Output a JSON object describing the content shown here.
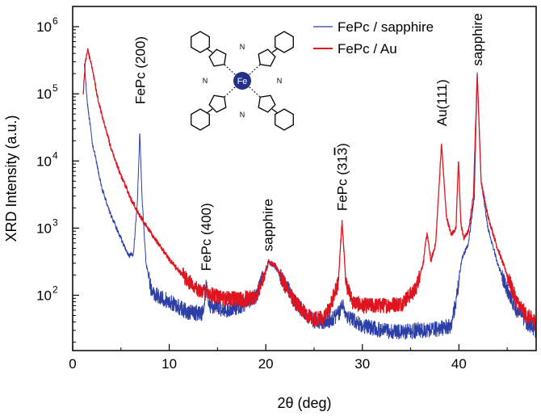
{
  "chart_data": {
    "type": "line",
    "title": "",
    "xlabel": "2θ (deg)",
    "ylabel": "XRD Intensity (a.u.)",
    "xlim": [
      0,
      48
    ],
    "ylim": [
      15,
      2000000
    ],
    "yscale": "log",
    "x_ticks": [
      0,
      10,
      20,
      30,
      40
    ],
    "x_tick_labels": [
      "0",
      "10",
      "20",
      "30",
      "40"
    ],
    "y_ticks": [
      100,
      1000,
      10000,
      100000,
      1000000
    ],
    "y_tick_labels": [
      "10",
      "10",
      "10",
      "10",
      "10"
    ],
    "y_tick_exponents": [
      "2",
      "3",
      "4",
      "5",
      "6"
    ],
    "legend_position": "top-right",
    "series": [
      {
        "name": "FePc / sapphire",
        "color": "#2b3fa6",
        "points": [
          [
            1.2,
            300000
          ],
          [
            1.5,
            80000
          ],
          [
            2,
            20000
          ],
          [
            3,
            4000
          ],
          [
            4,
            1500
          ],
          [
            5,
            700
          ],
          [
            5.8,
            380
          ],
          [
            6.3,
            420
          ],
          [
            6.7,
            2500
          ],
          [
            6.95,
            27000
          ],
          [
            7.2,
            2500
          ],
          [
            7.6,
            300
          ],
          [
            8.2,
            110
          ],
          [
            10,
            80
          ],
          [
            12,
            55
          ],
          [
            13.5,
            55
          ],
          [
            13.8,
            140
          ],
          [
            14.2,
            70
          ],
          [
            16,
            60
          ],
          [
            17.5,
            70
          ],
          [
            19,
            100
          ],
          [
            19.8,
            200
          ],
          [
            20.3,
            320
          ],
          [
            21,
            260
          ],
          [
            22,
            150
          ],
          [
            23,
            80
          ],
          [
            24,
            55
          ],
          [
            25,
            42
          ],
          [
            26,
            40
          ],
          [
            27,
            45
          ],
          [
            27.6,
            55
          ],
          [
            27.9,
            75
          ],
          [
            28.4,
            50
          ],
          [
            30,
            35
          ],
          [
            32,
            30
          ],
          [
            34,
            28
          ],
          [
            36,
            30
          ],
          [
            38,
            32
          ],
          [
            39.2,
            35
          ],
          [
            39.8,
            100
          ],
          [
            40.3,
            350
          ],
          [
            41,
            600
          ],
          [
            41.6,
            3000
          ],
          [
            41.9,
            200000
          ],
          [
            42.3,
            5000
          ],
          [
            43,
            1000
          ],
          [
            44,
            300
          ],
          [
            45,
            120
          ],
          [
            46,
            60
          ],
          [
            47,
            40
          ],
          [
            48,
            30
          ]
        ]
      },
      {
        "name": "FePc / Au",
        "color": "#e0141e",
        "points": [
          [
            1.1,
            100000
          ],
          [
            1.3,
            300000
          ],
          [
            1.55,
            450000
          ],
          [
            1.9,
            300000
          ],
          [
            2.5,
            100000
          ],
          [
            3,
            50000
          ],
          [
            4,
            15000
          ],
          [
            5,
            6000
          ],
          [
            6,
            2800
          ],
          [
            7,
            1500
          ],
          [
            8,
            900
          ],
          [
            9,
            550
          ],
          [
            10,
            350
          ],
          [
            11,
            230
          ],
          [
            12,
            160
          ],
          [
            13,
            120
          ],
          [
            13.7,
            110
          ],
          [
            14.5,
            100
          ],
          [
            16,
            90
          ],
          [
            17.5,
            85
          ],
          [
            19,
            95
          ],
          [
            19.8,
            180
          ],
          [
            20.3,
            320
          ],
          [
            21,
            280
          ],
          [
            22,
            140
          ],
          [
            23,
            80
          ],
          [
            24,
            55
          ],
          [
            25,
            45
          ],
          [
            26,
            45
          ],
          [
            26.7,
            70
          ],
          [
            27.5,
            150
          ],
          [
            27.9,
            1300
          ],
          [
            28.3,
            150
          ],
          [
            29,
            80
          ],
          [
            30,
            70
          ],
          [
            32,
            70
          ],
          [
            34,
            75
          ],
          [
            35.5,
            120
          ],
          [
            36.3,
            300
          ],
          [
            36.7,
            850
          ],
          [
            37.1,
            320
          ],
          [
            37.6,
            600
          ],
          [
            38.2,
            18000
          ],
          [
            38.7,
            1500
          ],
          [
            39.2,
            800
          ],
          [
            39.7,
            1000
          ],
          [
            39.95,
            10500
          ],
          [
            40.2,
            1200
          ],
          [
            40.5,
            700
          ],
          [
            41,
            900
          ],
          [
            41.5,
            3000
          ],
          [
            41.9,
            200000
          ],
          [
            42.3,
            5000
          ],
          [
            43,
            1500
          ],
          [
            44,
            500
          ],
          [
            45,
            200
          ],
          [
            46,
            80
          ],
          [
            47,
            50
          ],
          [
            48,
            40
          ]
        ]
      }
    ],
    "annotations": [
      {
        "text": "FePc (200)",
        "x": 7.0,
        "y": 70000
      },
      {
        "text": "FePc (400)",
        "x": 13.8,
        "y": 230
      },
      {
        "text": "sapphire",
        "x": 20.2,
        "y": 450
      },
      {
        "text": "FePc (31",
        "overline": "3",
        "close": ")",
        "x": 27.9,
        "y": 1800
      },
      {
        "text": "Au(111)",
        "x": 38.2,
        "y": 33000
      },
      {
        "text": "sapphire",
        "x": 41.9,
        "y": 260000
      }
    ],
    "molecule_center_label": "Fe",
    "molecule_n_label": "N"
  }
}
